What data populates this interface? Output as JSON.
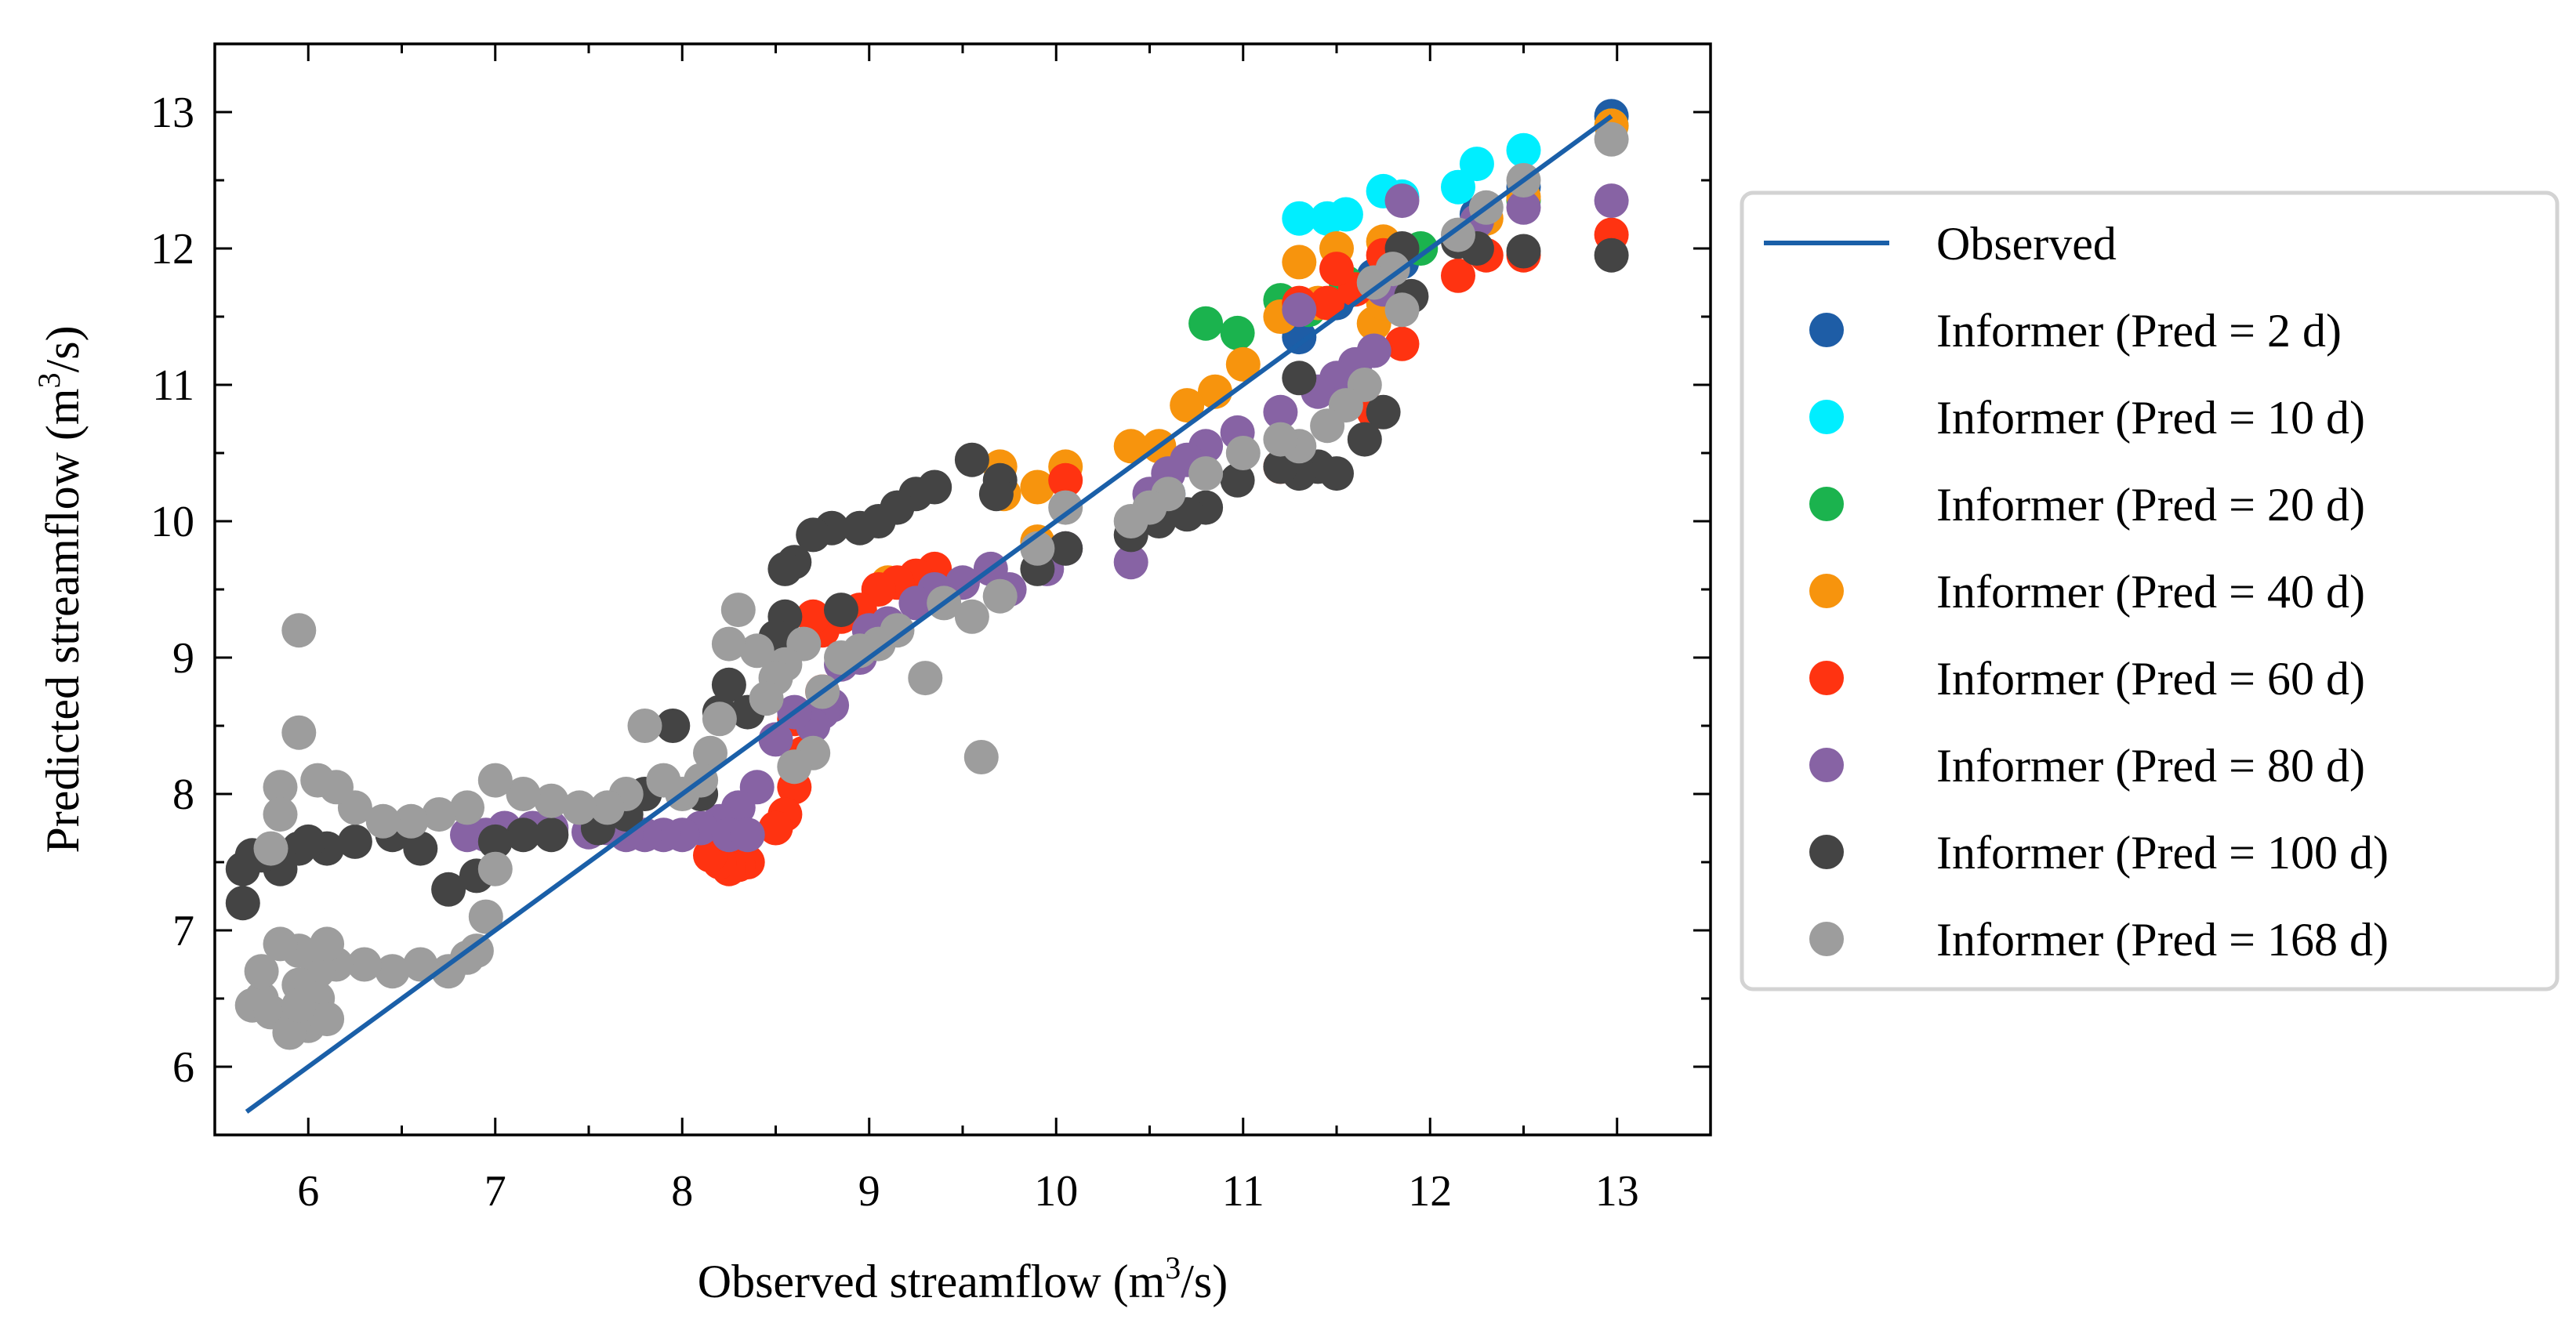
{
  "chart_data": {
    "type": "scatter",
    "title": "",
    "xlabel": "Observed streamflow (m",
    "xlabel_sup": "3",
    "xlabel_end": "/s)",
    "ylabel": "Predicted streamflow (m",
    "ylabel_sup": "3",
    "ylabel_end": "/s)",
    "xlim": [
      5.5,
      13.5
    ],
    "ylim": [
      5.5,
      13.5
    ],
    "xticks": [
      "6",
      "7",
      "8",
      "9",
      "10",
      "11",
      "12",
      "13"
    ],
    "yticks": [
      "6",
      "7",
      "8",
      "9",
      "10",
      "11",
      "12",
      "13"
    ],
    "grid": false,
    "legend_position": "outside-right",
    "line": {
      "name": "Observed",
      "color": "#1a5fa8",
      "x": [
        5.67,
        12.97
      ],
      "y": [
        5.67,
        12.97
      ]
    },
    "series": [
      {
        "name": "Informer (Pred = 2 d)",
        "color": "#1e5da6",
        "points": [
          [
            12.97,
            12.97
          ],
          [
            12.5,
            12.45
          ],
          [
            12.25,
            12.25
          ],
          [
            11.85,
            11.9
          ],
          [
            11.7,
            11.8
          ],
          [
            11.5,
            11.6
          ],
          [
            11.3,
            11.35
          ],
          [
            10.6,
            10.2
          ]
        ]
      },
      {
        "name": "Informer (Pred = 10 d)",
        "color": "#00eeff",
        "points": [
          [
            12.5,
            12.72
          ],
          [
            12.25,
            12.62
          ],
          [
            12.15,
            12.45
          ],
          [
            11.75,
            12.42
          ],
          [
            11.85,
            12.38
          ],
          [
            11.55,
            12.25
          ],
          [
            11.45,
            12.22
          ],
          [
            11.3,
            12.22
          ],
          [
            12.97,
            12.9
          ]
        ]
      },
      {
        "name": "Informer (Pred = 20 d)",
        "color": "#1bb34e",
        "points": [
          [
            10.8,
            11.45
          ],
          [
            10.97,
            11.38
          ],
          [
            11.2,
            11.62
          ],
          [
            11.35,
            11.55
          ],
          [
            11.55,
            11.75
          ],
          [
            11.95,
            12.0
          ],
          [
            12.2,
            12.05
          ],
          [
            12.5,
            12.35
          ],
          [
            11.7,
            11.75
          ]
        ]
      },
      {
        "name": "Informer (Pred = 40 d)",
        "color": "#f7940d",
        "points": [
          [
            12.97,
            12.9
          ],
          [
            12.5,
            12.38
          ],
          [
            12.3,
            12.22
          ],
          [
            11.75,
            12.05
          ],
          [
            11.5,
            12.0
          ],
          [
            11.3,
            11.9
          ],
          [
            11.2,
            11.5
          ],
          [
            11.0,
            11.15
          ],
          [
            10.85,
            10.95
          ],
          [
            10.7,
            10.85
          ],
          [
            10.55,
            10.55
          ],
          [
            10.4,
            10.55
          ],
          [
            10.05,
            10.4
          ],
          [
            9.9,
            10.25
          ],
          [
            9.7,
            10.4
          ],
          [
            9.72,
            10.2
          ],
          [
            9.9,
            9.85
          ],
          [
            9.3,
            9.6
          ],
          [
            9.1,
            9.55
          ],
          [
            11.4,
            11.6
          ],
          [
            11.7,
            11.45
          ],
          [
            11.75,
            11.6
          ]
        ]
      },
      {
        "name": "Informer (Pred = 60 d)",
        "color": "#ff3311",
        "points": [
          [
            12.97,
            12.1
          ],
          [
            12.5,
            11.95
          ],
          [
            12.3,
            11.95
          ],
          [
            12.15,
            11.8
          ],
          [
            11.85,
            11.3
          ],
          [
            11.75,
            11.95
          ],
          [
            11.6,
            11.7
          ],
          [
            11.5,
            11.85
          ],
          [
            11.45,
            11.6
          ],
          [
            11.3,
            11.6
          ],
          [
            11.2,
            10.4
          ],
          [
            11.7,
            10.8
          ],
          [
            10.05,
            10.3
          ],
          [
            9.35,
            9.65
          ],
          [
            9.25,
            9.6
          ],
          [
            9.15,
            9.55
          ],
          [
            9.05,
            9.5
          ],
          [
            8.95,
            9.35
          ],
          [
            8.85,
            9.3
          ],
          [
            8.75,
            9.2
          ],
          [
            8.7,
            9.3
          ],
          [
            8.65,
            8.3
          ],
          [
            8.6,
            8.05
          ],
          [
            8.55,
            7.85
          ],
          [
            8.5,
            7.75
          ],
          [
            8.35,
            7.5
          ],
          [
            8.3,
            7.48
          ],
          [
            8.25,
            7.45
          ],
          [
            8.2,
            7.5
          ],
          [
            8.15,
            7.55
          ],
          [
            8.75,
            8.75
          ],
          [
            8.6,
            8.55
          ]
        ]
      },
      {
        "name": "Informer (Pred = 80 d)",
        "color": "#8763a4",
        "points": [
          [
            12.97,
            12.35
          ],
          [
            12.5,
            12.3
          ],
          [
            12.25,
            12.2
          ],
          [
            11.85,
            12.35
          ],
          [
            11.75,
            11.7
          ],
          [
            11.7,
            11.25
          ],
          [
            11.6,
            11.15
          ],
          [
            11.5,
            11.05
          ],
          [
            11.4,
            10.95
          ],
          [
            11.3,
            11.55
          ],
          [
            11.2,
            10.8
          ],
          [
            10.97,
            10.65
          ],
          [
            10.8,
            10.55
          ],
          [
            10.7,
            10.45
          ],
          [
            10.6,
            10.35
          ],
          [
            10.5,
            10.2
          ],
          [
            10.4,
            9.7
          ],
          [
            10.05,
            9.8
          ],
          [
            9.95,
            9.65
          ],
          [
            9.75,
            9.5
          ],
          [
            9.65,
            9.65
          ],
          [
            9.5,
            9.55
          ],
          [
            9.35,
            9.5
          ],
          [
            9.25,
            9.4
          ],
          [
            9.1,
            9.25
          ],
          [
            9.0,
            9.2
          ],
          [
            8.95,
            9.0
          ],
          [
            8.85,
            8.95
          ],
          [
            8.8,
            8.65
          ],
          [
            8.75,
            8.6
          ],
          [
            8.7,
            8.5
          ],
          [
            8.6,
            8.6
          ],
          [
            8.5,
            8.4
          ],
          [
            8.4,
            8.05
          ],
          [
            8.3,
            7.9
          ],
          [
            8.2,
            7.8
          ],
          [
            8.1,
            7.75
          ],
          [
            8.0,
            7.7
          ],
          [
            7.9,
            7.7
          ],
          [
            7.8,
            7.7
          ],
          [
            7.7,
            7.7
          ],
          [
            7.6,
            7.75
          ],
          [
            7.5,
            7.72
          ],
          [
            7.3,
            7.75
          ],
          [
            7.2,
            7.75
          ],
          [
            7.05,
            7.75
          ],
          [
            6.95,
            7.7
          ],
          [
            6.85,
            7.7
          ],
          [
            8.25,
            7.7
          ],
          [
            8.35,
            7.7
          ]
        ]
      },
      {
        "name": "Informer (Pred = 100 d)",
        "color": "#444444",
        "points": [
          [
            12.97,
            11.95
          ],
          [
            12.5,
            11.98
          ],
          [
            12.25,
            12.0
          ],
          [
            12.15,
            12.05
          ],
          [
            11.85,
            12.0
          ],
          [
            11.75,
            10.8
          ],
          [
            11.65,
            10.6
          ],
          [
            11.5,
            10.35
          ],
          [
            11.4,
            10.4
          ],
          [
            11.3,
            10.35
          ],
          [
            11.2,
            10.4
          ],
          [
            11.3,
            11.05
          ],
          [
            10.97,
            10.3
          ],
          [
            10.8,
            10.1
          ],
          [
            10.7,
            10.05
          ],
          [
            10.55,
            10.0
          ],
          [
            10.4,
            9.9
          ],
          [
            10.05,
            9.8
          ],
          [
            9.9,
            9.65
          ],
          [
            9.7,
            10.3
          ],
          [
            9.68,
            10.2
          ],
          [
            9.55,
            10.45
          ],
          [
            9.35,
            10.25
          ],
          [
            9.25,
            10.2
          ],
          [
            9.15,
            10.1
          ],
          [
            9.05,
            10.0
          ],
          [
            8.95,
            9.95
          ],
          [
            8.8,
            9.95
          ],
          [
            8.7,
            9.9
          ],
          [
            8.6,
            9.7
          ],
          [
            8.55,
            9.65
          ],
          [
            8.55,
            9.3
          ],
          [
            8.5,
            9.15
          ],
          [
            8.35,
            8.6
          ],
          [
            8.25,
            8.8
          ],
          [
            8.2,
            8.6
          ],
          [
            8.1,
            8.0
          ],
          [
            7.95,
            8.5
          ],
          [
            7.8,
            8.0
          ],
          [
            7.7,
            7.85
          ],
          [
            7.55,
            7.75
          ],
          [
            7.3,
            7.7
          ],
          [
            7.15,
            7.7
          ],
          [
            7.0,
            7.65
          ],
          [
            6.9,
            7.4
          ],
          [
            6.75,
            7.3
          ],
          [
            6.6,
            7.6
          ],
          [
            6.45,
            7.7
          ],
          [
            6.25,
            7.65
          ],
          [
            6.1,
            7.6
          ],
          [
            5.95,
            7.6
          ],
          [
            5.85,
            7.45
          ],
          [
            5.7,
            7.55
          ],
          [
            5.65,
            7.45
          ],
          [
            5.65,
            7.2
          ],
          [
            5.75,
            7.55
          ],
          [
            6.0,
            7.65
          ],
          [
            8.85,
            9.35
          ],
          [
            11.9,
            11.65
          ]
        ]
      },
      {
        "name": "Informer (Pred = 168 d)",
        "color": "#9d9d9d",
        "points": [
          [
            12.97,
            12.8
          ],
          [
            12.5,
            12.5
          ],
          [
            12.3,
            12.3
          ],
          [
            12.15,
            12.1
          ],
          [
            11.85,
            11.55
          ],
          [
            11.8,
            11.85
          ],
          [
            11.7,
            11.75
          ],
          [
            11.65,
            11.0
          ],
          [
            11.55,
            10.85
          ],
          [
            11.45,
            10.7
          ],
          [
            11.3,
            10.55
          ],
          [
            11.2,
            10.6
          ],
          [
            11.0,
            10.5
          ],
          [
            10.8,
            10.35
          ],
          [
            10.6,
            10.2
          ],
          [
            10.5,
            10.1
          ],
          [
            10.4,
            10.0
          ],
          [
            10.05,
            10.1
          ],
          [
            9.9,
            9.8
          ],
          [
            9.7,
            9.45
          ],
          [
            9.6,
            8.27
          ],
          [
            9.55,
            9.3
          ],
          [
            9.4,
            9.4
          ],
          [
            9.3,
            8.85
          ],
          [
            9.15,
            9.2
          ],
          [
            9.05,
            9.1
          ],
          [
            8.95,
            9.05
          ],
          [
            8.85,
            9.0
          ],
          [
            8.75,
            8.75
          ],
          [
            8.7,
            8.3
          ],
          [
            8.65,
            9.1
          ],
          [
            8.6,
            8.2
          ],
          [
            8.55,
            8.95
          ],
          [
            8.5,
            8.85
          ],
          [
            8.45,
            8.7
          ],
          [
            8.4,
            9.05
          ],
          [
            8.3,
            9.35
          ],
          [
            8.25,
            9.1
          ],
          [
            8.2,
            8.55
          ],
          [
            8.15,
            8.3
          ],
          [
            8.1,
            8.1
          ],
          [
            8.0,
            8.0
          ],
          [
            7.9,
            8.1
          ],
          [
            7.8,
            8.5
          ],
          [
            7.7,
            8.0
          ],
          [
            7.6,
            7.9
          ],
          [
            7.45,
            7.9
          ],
          [
            7.3,
            7.95
          ],
          [
            7.15,
            8.0
          ],
          [
            7.0,
            8.1
          ],
          [
            6.85,
            7.9
          ],
          [
            6.7,
            7.85
          ],
          [
            6.55,
            7.8
          ],
          [
            6.4,
            7.8
          ],
          [
            6.25,
            7.9
          ],
          [
            6.15,
            8.05
          ],
          [
            6.05,
            8.1
          ],
          [
            5.85,
            8.05
          ],
          [
            5.85,
            7.85
          ],
          [
            5.8,
            7.6
          ],
          [
            5.95,
            9.2
          ],
          [
            5.95,
            8.45
          ],
          [
            7.0,
            7.45
          ],
          [
            6.95,
            7.1
          ],
          [
            6.9,
            6.85
          ],
          [
            6.85,
            6.8
          ],
          [
            6.75,
            6.7
          ],
          [
            6.6,
            6.75
          ],
          [
            6.45,
            6.7
          ],
          [
            6.3,
            6.75
          ],
          [
            6.15,
            6.75
          ],
          [
            6.05,
            6.7
          ],
          [
            5.95,
            6.85
          ],
          [
            5.85,
            6.9
          ],
          [
            5.75,
            6.5
          ],
          [
            5.7,
            6.45
          ],
          [
            5.8,
            6.4
          ],
          [
            5.95,
            6.6
          ],
          [
            6.05,
            6.5
          ],
          [
            6.0,
            6.3
          ],
          [
            6.1,
            6.35
          ],
          [
            5.9,
            6.25
          ],
          [
            5.75,
            6.7
          ],
          [
            6.1,
            6.9
          ],
          [
            5.95,
            6.45
          ]
        ]
      }
    ]
  }
}
